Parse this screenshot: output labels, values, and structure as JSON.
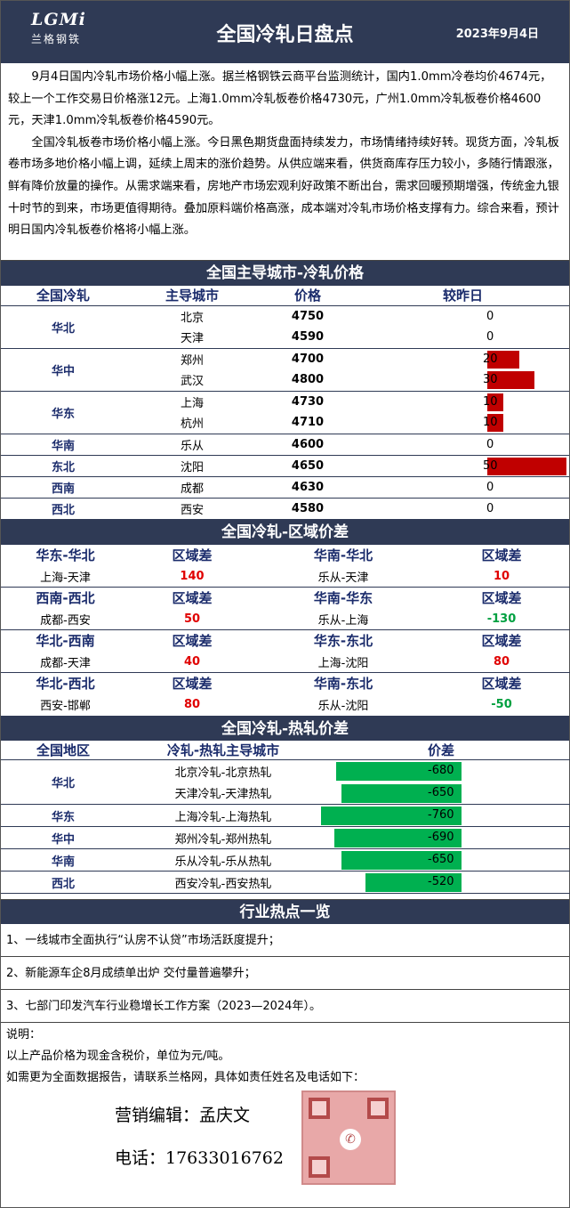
{
  "header": {
    "logo_mark": "LGMi",
    "logo_sub": "兰格钢铁",
    "title": "全国冷轧日盘点",
    "date": "2023年9月4日"
  },
  "intro": {
    "p1": "9月4日国内冷轧市场价格小幅上涨。据兰格钢铁云商平台监测统计，国内1.0mm冷卷均价4674元，较上一个工作交易日价格涨12元。上海1.0mm冷轧板卷价格4730元，广州1.0mm冷轧板卷价格4600元，天津1.0mm冷轧板卷价格4590元。",
    "p2": "全国冷轧板卷市场价格小幅上涨。今日黑色期货盘面持续发力，市场情绪持续好转。现货方面，冷轧板卷市场多地价格小幅上调，延续上周末的涨价趋势。从供应端来看，供货商库存压力较小，多随行情跟涨，鲜有降价放量的操作。从需求端来看，房地产市场宏观利好政策不断出台，需求回暖预期增强，传统金九银十时节的到来，市场更值得期待。叠加原料端价格高涨，成本端对冷轧市场价格支撑有力。综合来看，预计明日国内冷轧板卷价格将小幅上涨。"
  },
  "section1": {
    "title": "全国主导城市-冷轧价格",
    "headers": [
      "全国冷轧",
      "主导城市",
      "价格",
      "较昨日"
    ],
    "groups": [
      {
        "region": "华北",
        "rows": [
          {
            "city": "北京",
            "price": "4750",
            "change": 0
          },
          {
            "city": "天津",
            "price": "4590",
            "change": 0
          }
        ]
      },
      {
        "region": "华中",
        "rows": [
          {
            "city": "郑州",
            "price": "4700",
            "change": 20
          },
          {
            "city": "武汉",
            "price": "4800",
            "change": 30
          }
        ]
      },
      {
        "region": "华东",
        "rows": [
          {
            "city": "上海",
            "price": "4730",
            "change": 10
          },
          {
            "city": "杭州",
            "price": "4710",
            "change": 10
          }
        ]
      },
      {
        "region": "华南",
        "rows": [
          {
            "city": "乐从",
            "price": "4600",
            "change": 0
          }
        ]
      },
      {
        "region": "东北",
        "rows": [
          {
            "city": "沈阳",
            "price": "4650",
            "change": 50
          }
        ]
      },
      {
        "region": "西南",
        "rows": [
          {
            "city": "成都",
            "price": "4630",
            "change": 0
          }
        ]
      },
      {
        "region": "西北",
        "rows": [
          {
            "city": "西安",
            "price": "4580",
            "change": 0
          }
        ]
      }
    ]
  },
  "section2": {
    "title": "全国冷轧-区域价差",
    "diff_label": "区域差",
    "blocks": [
      {
        "left_title": "华东-华北",
        "left_pair": "上海-天津",
        "left_val": "140",
        "left_sign": "pos",
        "right_title": "华南-华北",
        "right_pair": "乐从-天津",
        "right_val": "10",
        "right_sign": "pos"
      },
      {
        "left_title": "西南-西北",
        "left_pair": "成都-西安",
        "left_val": "50",
        "left_sign": "pos",
        "right_title": "华南-华东",
        "right_pair": "乐从-上海",
        "right_val": "-130",
        "right_sign": "neg"
      },
      {
        "left_title": "华北-西南",
        "left_pair": "成都-天津",
        "left_val": "40",
        "left_sign": "pos",
        "right_title": "华东-东北",
        "right_pair": "上海-沈阳",
        "right_val": "80",
        "right_sign": "pos"
      },
      {
        "left_title": "华北-西北",
        "left_pair": "西安-邯郸",
        "left_val": "80",
        "left_sign": "pos",
        "right_title": "华南-东北",
        "right_pair": "乐从-沈阳",
        "right_val": "-50",
        "right_sign": "neg"
      }
    ]
  },
  "section3": {
    "title": "全国冷轧-热轧价差",
    "headers": [
      "全国地区",
      "冷轧-热轧主导城市",
      "价差"
    ],
    "groups": [
      {
        "region": "华北",
        "rows": [
          {
            "pair": "北京冷轧-北京热轧",
            "value": -680
          },
          {
            "pair": "天津冷轧-天津热轧",
            "value": -650
          }
        ]
      },
      {
        "region": "华东",
        "rows": [
          {
            "pair": "上海冷轧-上海热轧",
            "value": -760
          }
        ]
      },
      {
        "region": "华中",
        "rows": [
          {
            "pair": "郑州冷轧-郑州热轧",
            "value": -690
          }
        ]
      },
      {
        "region": "华南",
        "rows": [
          {
            "pair": "乐从冷轧-乐从热轧",
            "value": -650
          }
        ]
      },
      {
        "region": "西北",
        "rows": [
          {
            "pair": "西安冷轧-西安热轧",
            "value": -520
          }
        ]
      }
    ]
  },
  "section4": {
    "title": "行业热点一览",
    "items": [
      "1、一线城市全面执行“认房不认贷”市场活跃度提升；",
      "2、新能源车企8月成绩单出炉 交付量普遍攀升；",
      "3、七部门印发汽车行业稳增长工作方案（2023—2024年）。"
    ]
  },
  "notes": {
    "label": "说明：",
    "line1": "以上产品价格为现金含税价，单位为元/吨。",
    "line2": "如需更为全面数据报告，请联系兰格网，具体如责任姓名及电话如下："
  },
  "contact": {
    "editor": "营销编辑：孟庆文",
    "phone": "电话：17633016762"
  },
  "colors": {
    "navy": "#2f3a55",
    "up_bar": "#c00000",
    "spread_bar": "#00b050",
    "pos_text": "#e00000",
    "neg_text": "#00a040"
  }
}
